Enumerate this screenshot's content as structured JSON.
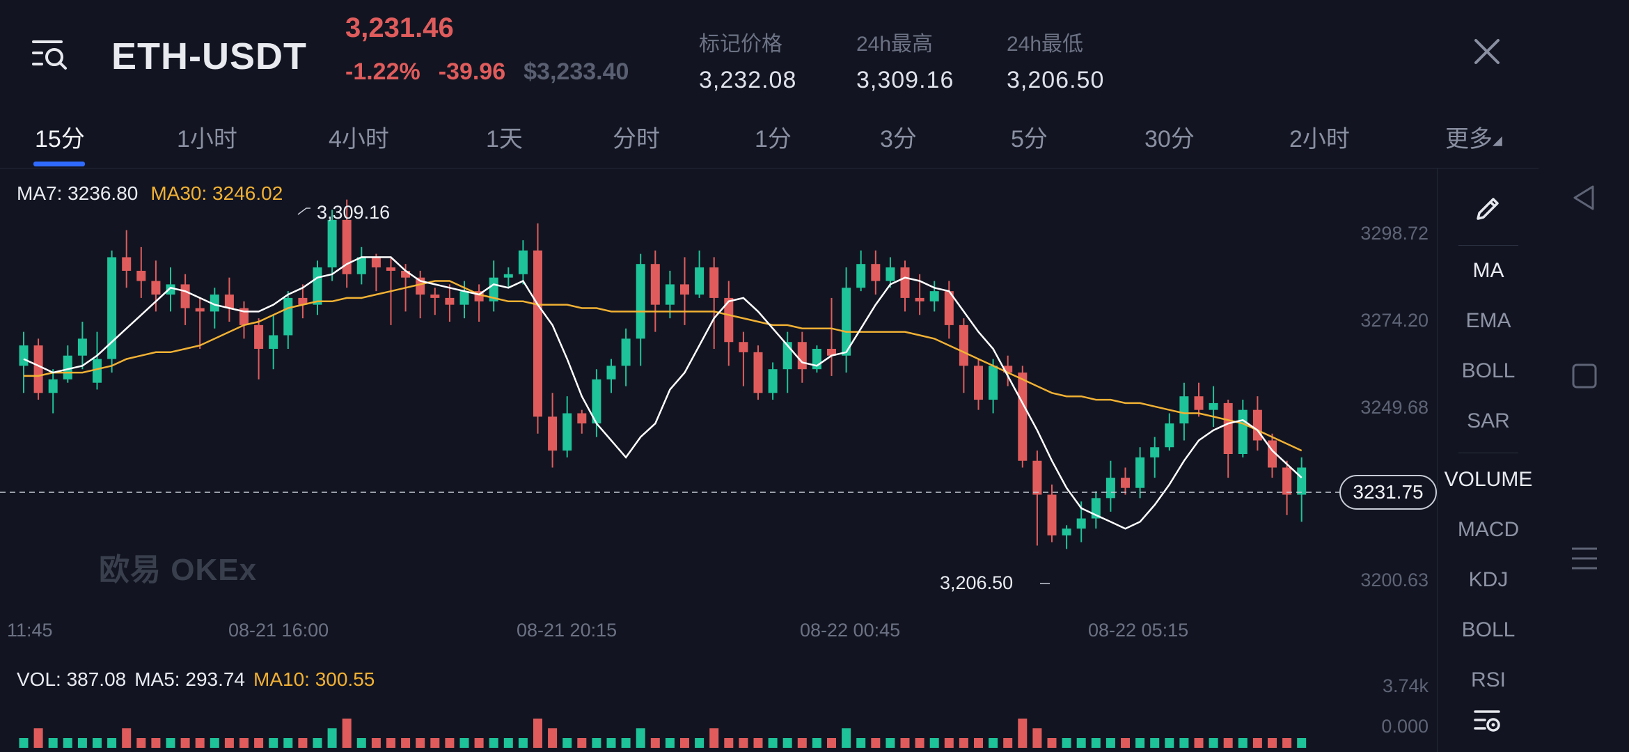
{
  "header": {
    "pair": "ETH-USDT",
    "last_price": "3,231.46",
    "change_pct": "-1.22%",
    "change_abs": "-39.96",
    "usd_price": "$3,233.40",
    "stats": [
      {
        "label": "标记价格",
        "value": "3,232.08"
      },
      {
        "label": "24h最高",
        "value": "3,309.16"
      },
      {
        "label": "24h最低",
        "value": "3,206.50"
      }
    ]
  },
  "tabs": [
    "15分",
    "1小时",
    "4小时",
    "1天",
    "分时",
    "1分",
    "3分",
    "5分",
    "30分",
    "2小时",
    "更多"
  ],
  "active_tab": "15分",
  "legend": {
    "ma7": "MA7: 3236.80",
    "ma30": "MA30: 3246.02",
    "vol": "VOL: 387.08",
    "vol_ma5": "MA5: 293.74",
    "vol_ma10": "MA10: 300.55"
  },
  "watermark": "欧易 OKEx",
  "price_scale": [
    "3298.72",
    "3274.20",
    "3249.68",
    "3200.63"
  ],
  "current_price_label": "3231.75",
  "high_marker": "3,309.16",
  "low_marker": "3,206.50",
  "time_axis": [
    "11:45",
    "08-21 16:00",
    "08-21 20:15",
    "08-22 00:45",
    "08-22 05:15"
  ],
  "volume_scale": [
    "3.74k",
    "0.000"
  ],
  "tools": [
    "MA",
    "EMA",
    "BOLL",
    "SAR",
    "VOLUME",
    "MACD",
    "KDJ",
    "BOLL",
    "RSI"
  ],
  "colors": {
    "up": "#1ec39a",
    "down": "#e05c5c",
    "ma_fast": "#ffffff",
    "ma_slow": "#f2b134",
    "accent": "#2f6bff",
    "background": "#121521"
  },
  "chart_data": {
    "type": "candlestick",
    "y_range": [
      3195,
      3312
    ],
    "candles": [
      [
        3260,
        3266,
        3252,
        3270
      ],
      [
        3266,
        3252,
        3250,
        3268
      ],
      [
        3252,
        3256,
        3246,
        3259
      ],
      [
        3256,
        3263,
        3255,
        3266
      ],
      [
        3263,
        3268,
        3259,
        3273
      ],
      [
        3255,
        3262,
        3253,
        3270
      ],
      [
        3262,
        3292,
        3258,
        3294
      ],
      [
        3292,
        3288,
        3283,
        3300
      ],
      [
        3288,
        3285,
        3280,
        3295
      ],
      [
        3285,
        3281,
        3276,
        3291
      ],
      [
        3281,
        3284,
        3276,
        3289
      ],
      [
        3284,
        3277,
        3272,
        3287
      ],
      [
        3277,
        3276,
        3265,
        3280
      ],
      [
        3276,
        3281,
        3271,
        3283
      ],
      [
        3281,
        3277,
        3273,
        3286
      ],
      [
        3277,
        3272,
        3268,
        3279
      ],
      [
        3272,
        3265,
        3256,
        3274
      ],
      [
        3265,
        3269,
        3259,
        3275
      ],
      [
        3269,
        3280,
        3265,
        3282
      ],
      [
        3280,
        3278,
        3274,
        3284
      ],
      [
        3278,
        3289,
        3275,
        3291
      ],
      [
        3289,
        3303,
        3285,
        3306
      ],
      [
        3303,
        3287,
        3283,
        3309
      ],
      [
        3287,
        3292,
        3284,
        3295
      ],
      [
        3292,
        3289,
        3282,
        3293
      ],
      [
        3289,
        3288,
        3272,
        3292
      ],
      [
        3288,
        3286,
        3276,
        3290
      ],
      [
        3286,
        3281,
        3274,
        3288
      ],
      [
        3281,
        3280,
        3275,
        3283
      ],
      [
        3280,
        3278,
        3273,
        3284
      ],
      [
        3278,
        3282,
        3274,
        3285
      ],
      [
        3282,
        3279,
        3273,
        3284
      ],
      [
        3279,
        3286,
        3276,
        3291
      ],
      [
        3286,
        3287,
        3283,
        3289
      ],
      [
        3287,
        3294,
        3284,
        3297
      ],
      [
        3294,
        3245,
        3240,
        3302
      ],
      [
        3245,
        3235,
        3230,
        3252
      ],
      [
        3235,
        3246,
        3233,
        3251
      ],
      [
        3246,
        3243,
        3240,
        3247
      ],
      [
        3243,
        3256,
        3239,
        3259
      ],
      [
        3256,
        3260,
        3252,
        3262
      ],
      [
        3260,
        3268,
        3254,
        3271
      ],
      [
        3268,
        3290,
        3260,
        3293
      ],
      [
        3290,
        3278,
        3270,
        3294
      ],
      [
        3278,
        3284,
        3274,
        3288
      ],
      [
        3284,
        3281,
        3272,
        3292
      ],
      [
        3281,
        3289,
        3280,
        3294
      ],
      [
        3289,
        3280,
        3265,
        3292
      ],
      [
        3280,
        3267,
        3260,
        3285
      ],
      [
        3267,
        3264,
        3254,
        3270
      ],
      [
        3264,
        3252,
        3250,
        3266
      ],
      [
        3252,
        3259,
        3250,
        3261
      ],
      [
        3259,
        3267,
        3252,
        3270
      ],
      [
        3267,
        3259,
        3255,
        3270
      ],
      [
        3259,
        3265,
        3258,
        3266
      ],
      [
        3265,
        3263,
        3257,
        3280
      ],
      [
        3263,
        3283,
        3258,
        3289
      ],
      [
        3283,
        3290,
        3282,
        3294
      ],
      [
        3290,
        3285,
        3281,
        3294
      ],
      [
        3285,
        3289,
        3283,
        3292
      ],
      [
        3289,
        3280,
        3276,
        3291
      ],
      [
        3280,
        3279,
        3275,
        3287
      ],
      [
        3279,
        3282,
        3276,
        3285
      ],
      [
        3282,
        3272,
        3268,
        3285
      ],
      [
        3272,
        3260,
        3252,
        3274
      ],
      [
        3260,
        3250,
        3247,
        3262
      ],
      [
        3250,
        3260,
        3246,
        3262
      ],
      [
        3260,
        3258,
        3254,
        3263
      ],
      [
        3258,
        3232,
        3230,
        3260
      ],
      [
        3232,
        3222,
        3207,
        3235
      ],
      [
        3222,
        3210,
        3208,
        3225
      ],
      [
        3210,
        3212,
        3206,
        3213
      ],
      [
        3212,
        3215,
        3208,
        3220
      ],
      [
        3215,
        3221,
        3212,
        3223
      ],
      [
        3221,
        3227,
        3217,
        3232
      ],
      [
        3227,
        3224,
        3222,
        3230
      ],
      [
        3224,
        3233,
        3221,
        3236
      ],
      [
        3233,
        3236,
        3227,
        3239
      ],
      [
        3236,
        3243,
        3235,
        3246
      ],
      [
        3243,
        3251,
        3238,
        3255
      ],
      [
        3251,
        3247,
        3245,
        3255
      ],
      [
        3247,
        3249,
        3242,
        3254
      ],
      [
        3249,
        3234,
        3227,
        3250
      ],
      [
        3234,
        3247,
        3233,
        3250
      ],
      [
        3247,
        3238,
        3235,
        3251
      ],
      [
        3238,
        3230,
        3227,
        3240
      ],
      [
        3230,
        3222,
        3216,
        3232
      ],
      [
        3222,
        3230,
        3214,
        3233
      ]
    ],
    "ma7": [
      3262,
      3260,
      3258,
      3259,
      3260,
      3263,
      3267,
      3271,
      3275,
      3279,
      3283,
      3282,
      3280,
      3278,
      3277,
      3276,
      3276,
      3278,
      3281,
      3283,
      3286,
      3287,
      3290,
      3292,
      3292,
      3292,
      3288,
      3285,
      3284,
      3283,
      3282,
      3281,
      3284,
      3283,
      3285,
      3278,
      3272,
      3262,
      3251,
      3243,
      3238,
      3233,
      3239,
      3243,
      3253,
      3258,
      3266,
      3274,
      3279,
      3280,
      3276,
      3271,
      3266,
      3261,
      3260,
      3263,
      3264,
      3271,
      3278,
      3284,
      3286,
      3285,
      3283,
      3282,
      3276,
      3270,
      3265,
      3257,
      3249,
      3241,
      3232,
      3224,
      3218,
      3216,
      3214,
      3212,
      3214,
      3219,
      3225,
      3232,
      3238,
      3241,
      3243,
      3244,
      3241,
      3235,
      3231,
      3227
    ],
    "ma30": [
      3257,
      3257,
      3258,
      3258,
      3258,
      3259,
      3260,
      3262,
      3263,
      3264,
      3264,
      3265,
      3266,
      3268,
      3270,
      3272,
      3273,
      3275,
      3277,
      3278,
      3279,
      3279,
      3280,
      3280,
      3281,
      3282,
      3283,
      3284,
      3285,
      3285,
      3283,
      3281,
      3280,
      3279,
      3279,
      3278,
      3278,
      3278,
      3277,
      3277,
      3276,
      3276,
      3276,
      3276,
      3276,
      3276,
      3276,
      3276,
      3275,
      3274,
      3273,
      3272,
      3272,
      3271,
      3271,
      3271,
      3270,
      3270,
      3270,
      3270,
      3270,
      3269,
      3268,
      3266,
      3264,
      3262,
      3260,
      3258,
      3256,
      3254,
      3252,
      3251,
      3251,
      3250,
      3250,
      3249,
      3249,
      3248,
      3247,
      3246,
      3246,
      3245,
      3244,
      3243,
      3241,
      3239,
      3237,
      3235
    ],
    "volume": [
      1,
      2,
      1,
      1,
      1,
      1,
      1,
      2,
      1,
      1,
      1,
      1,
      1,
      1,
      1,
      1,
      1,
      1,
      1,
      1,
      1,
      2,
      3,
      1,
      1,
      1,
      1,
      1,
      1,
      1,
      1,
      1,
      1,
      1,
      1,
      3,
      2,
      1,
      1,
      1,
      1,
      1,
      2,
      1,
      1,
      1,
      1,
      2,
      1,
      1,
      1,
      1,
      1,
      1,
      1,
      1,
      2,
      1,
      1,
      1,
      1,
      1,
      1,
      1,
      1,
      1,
      1,
      1,
      3,
      2,
      1,
      1,
      1,
      1,
      1,
      1,
      1,
      1,
      1,
      1,
      1,
      1,
      1,
      1,
      1,
      1,
      1,
      1
    ]
  }
}
